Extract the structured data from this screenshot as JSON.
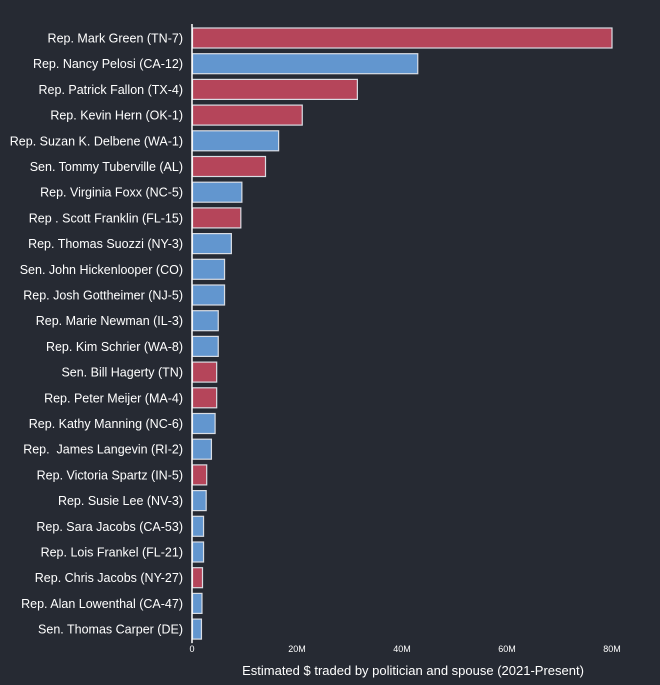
{
  "chart_data": {
    "type": "bar",
    "orientation": "horizontal",
    "xlabel": "Estimated $ traded by politician and spouse (2021-Present)",
    "ylabel": "",
    "xlim": [
      0,
      80000000
    ],
    "x_ticks": [
      {
        "value": 0,
        "label": "0"
      },
      {
        "value": 20000000,
        "label": "20M"
      },
      {
        "value": 40000000,
        "label": "40M"
      },
      {
        "value": 60000000,
        "label": "60M"
      },
      {
        "value": 80000000,
        "label": "80M"
      }
    ],
    "grid": false,
    "colors": {
      "R": "#b5455a",
      "D": "#6296cf",
      "bar_outline": "#d9dde4",
      "background": "#262a33",
      "text": "#ffffff",
      "axis": "#ffffff"
    },
    "bars": [
      {
        "label": "Rep. Mark Green (TN-7)",
        "value": 80000000,
        "party": "R"
      },
      {
        "label": "Rep. Nancy Pelosi (CA-12)",
        "value": 43000000,
        "party": "D"
      },
      {
        "label": "Rep. Patrick Fallon (TX-4)",
        "value": 31500000,
        "party": "R"
      },
      {
        "label": "Rep. Kevin Hern (OK-1)",
        "value": 21000000,
        "party": "R"
      },
      {
        "label": "Rep. Suzan K. Delbene (WA-1)",
        "value": 16500000,
        "party": "D"
      },
      {
        "label": "Sen. Tommy Tuberville (AL)",
        "value": 14000000,
        "party": "R"
      },
      {
        "label": "Rep. Virginia Foxx (NC-5)",
        "value": 9500000,
        "party": "D"
      },
      {
        "label": "Rep . Scott Franklin (FL-15)",
        "value": 9300000,
        "party": "R"
      },
      {
        "label": "Rep. Thomas Suozzi (NY-3)",
        "value": 7500000,
        "party": "D"
      },
      {
        "label": "Sen. John Hickenlooper (CO)",
        "value": 6200000,
        "party": "D"
      },
      {
        "label": "Rep. Josh Gottheimer (NJ-5)",
        "value": 6200000,
        "party": "D"
      },
      {
        "label": "Rep. Marie Newman (IL-3)",
        "value": 5000000,
        "party": "D"
      },
      {
        "label": "Rep. Kim Schrier (WA-8)",
        "value": 5000000,
        "party": "D"
      },
      {
        "label": "Sen. Bill Hagerty (TN)",
        "value": 4700000,
        "party": "R"
      },
      {
        "label": "Rep. Peter Meijer (MA-4)",
        "value": 4700000,
        "party": "R"
      },
      {
        "label": "Rep. Kathy Manning (NC-6)",
        "value": 4400000,
        "party": "D"
      },
      {
        "label": "Rep.  James Langevin (RI-2)",
        "value": 3700000,
        "party": "D"
      },
      {
        "label": "Rep. Victoria Spartz (IN-5)",
        "value": 2800000,
        "party": "R"
      },
      {
        "label": "Rep. Susie Lee (NV-3)",
        "value": 2700000,
        "party": "D"
      },
      {
        "label": "Rep. Sara Jacobs (CA-53)",
        "value": 2200000,
        "party": "D"
      },
      {
        "label": "Rep. Lois Frankel (FL-21)",
        "value": 2200000,
        "party": "D"
      },
      {
        "label": "Rep. Chris Jacobs (NY-27)",
        "value": 2000000,
        "party": "R"
      },
      {
        "label": "Rep. Alan Lowenthal (CA-47)",
        "value": 1900000,
        "party": "D"
      },
      {
        "label": "Sen. Thomas Carper (DE)",
        "value": 1800000,
        "party": "D"
      }
    ]
  }
}
